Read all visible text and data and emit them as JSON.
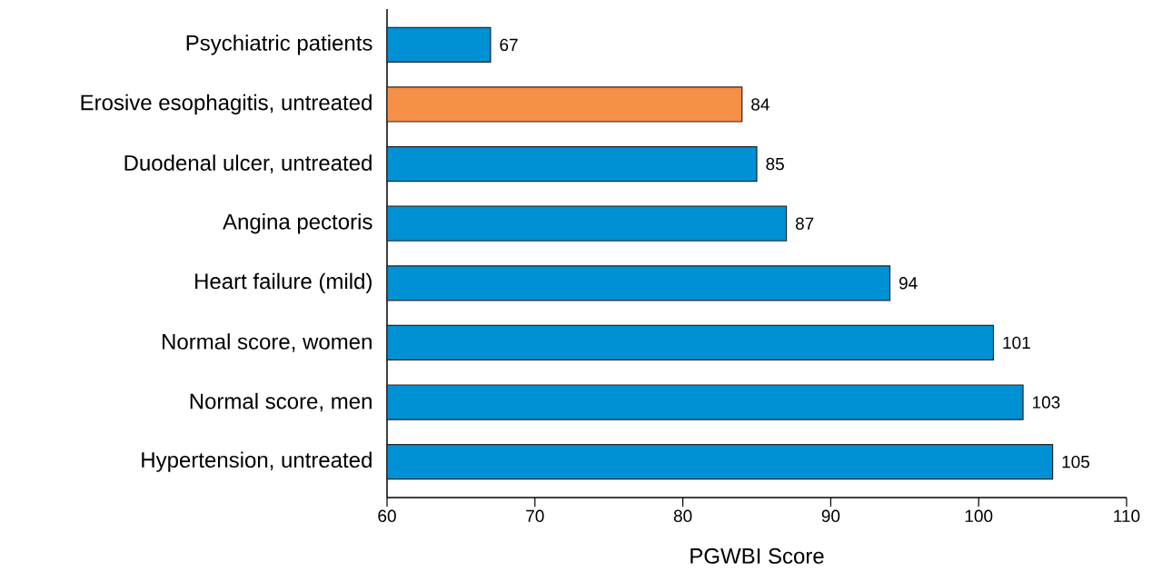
{
  "chart_data": {
    "type": "bar",
    "orientation": "horizontal",
    "xlabel": "PGWBI Score",
    "categories": [
      "Psychiatric patients",
      "Erosive esophagitis, untreated",
      "Duodenal ulcer, untreated",
      "Angina pectoris",
      "Heart failure (mild)",
      "Normal score, women",
      "Normal score, men",
      "Hypertension, untreated"
    ],
    "values": [
      67,
      84,
      85,
      87,
      94,
      101,
      103,
      105
    ],
    "colors": [
      "#0091d5",
      "#f68f48",
      "#0091d5",
      "#0091d5",
      "#0091d5",
      "#0091d5",
      "#0091d5",
      "#0091d5"
    ],
    "data_labels": true,
    "xlim": [
      60,
      110
    ],
    "xticks": [
      60,
      70,
      80,
      90,
      100,
      110
    ]
  }
}
